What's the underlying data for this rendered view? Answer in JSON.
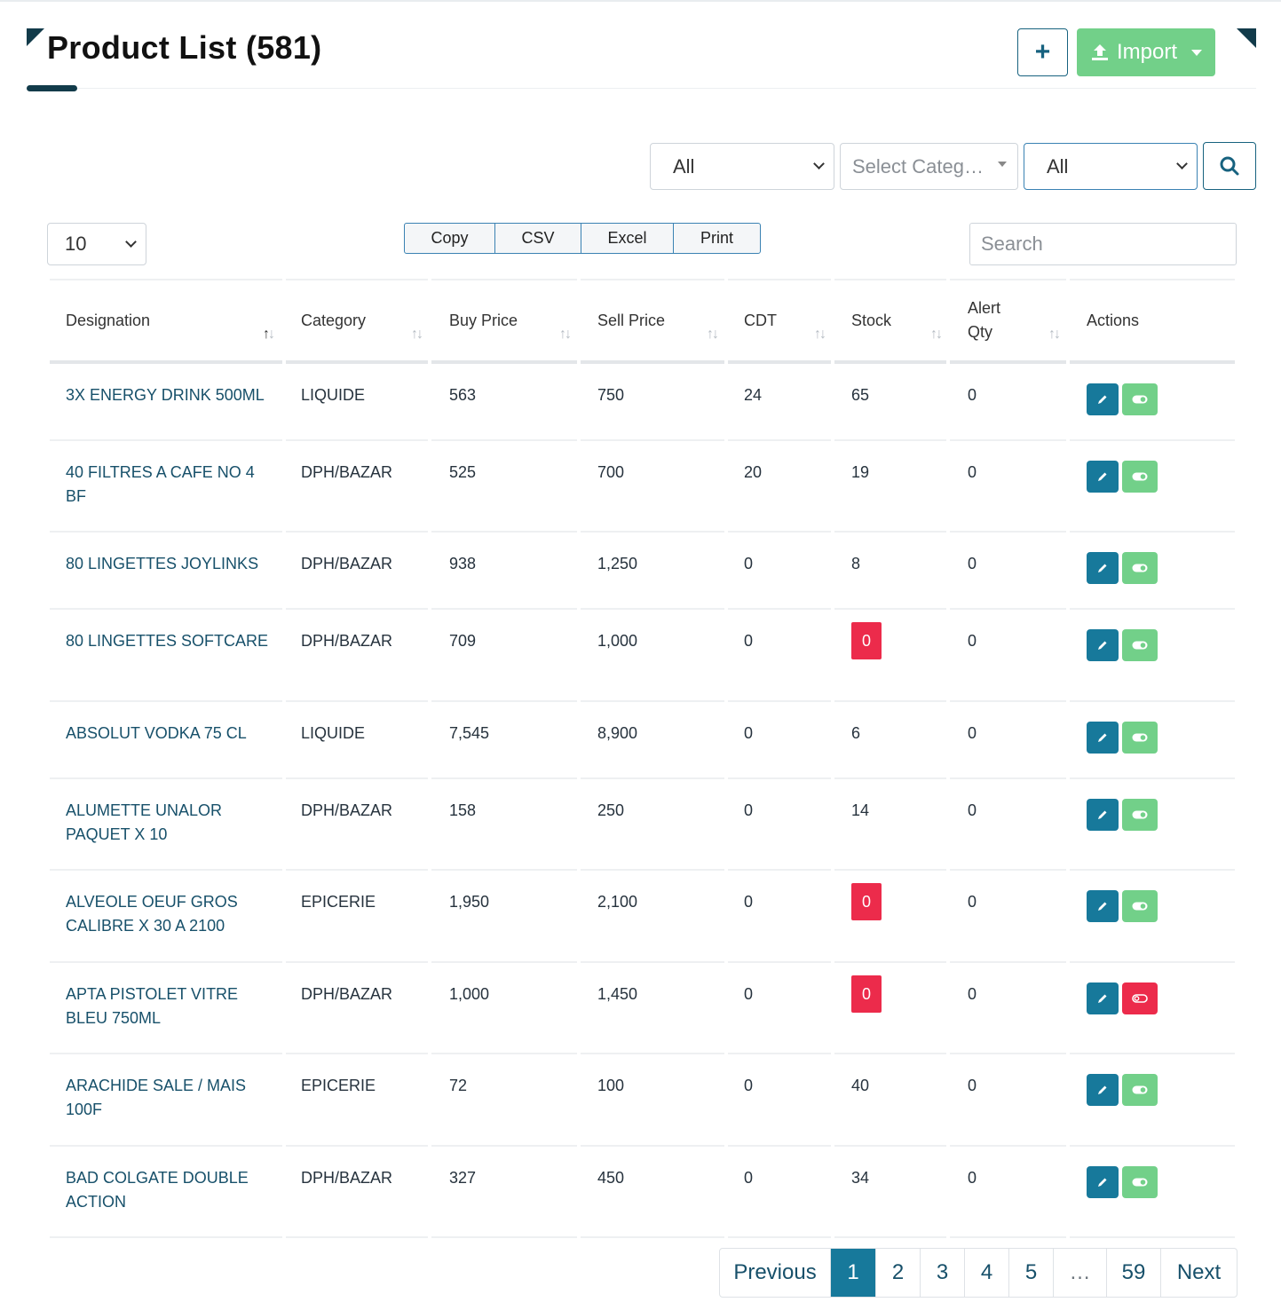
{
  "header": {
    "title": "Product List (581)",
    "import_label": "Import"
  },
  "filters": {
    "status_value": "All",
    "category_placeholder": "Select Categ…",
    "type_value": "All"
  },
  "controls": {
    "page_length": "10",
    "export_buttons": [
      "Copy",
      "CSV",
      "Excel",
      "Print"
    ],
    "search_placeholder": "Search"
  },
  "table": {
    "columns": [
      "Designation",
      "Category",
      "Buy Price",
      "Sell Price",
      "CDT",
      "Stock",
      "Alert\nQty",
      "Actions"
    ],
    "rows": [
      {
        "designation": "3X ENERGY DRINK 500ML",
        "category": "LIQUIDE",
        "buy": "563",
        "sell": "750",
        "cdt": "24",
        "stock": "65",
        "alert": "0",
        "active": true
      },
      {
        "designation": "40 FILTRES A CAFE NO 4 BF",
        "category": "DPH/BAZAR",
        "buy": "525",
        "sell": "700",
        "cdt": "20",
        "stock": "19",
        "alert": "0",
        "active": true
      },
      {
        "designation": "80 LINGETTES JOYLINKS",
        "category": "DPH/BAZAR",
        "buy": "938",
        "sell": "1,250",
        "cdt": "0",
        "stock": "8",
        "alert": "0",
        "active": true
      },
      {
        "designation": "80 LINGETTES SOFTCARE",
        "category": "DPH/BAZAR",
        "buy": "709",
        "sell": "1,000",
        "cdt": "0",
        "stock": "0",
        "alert": "0",
        "active": true
      },
      {
        "designation": "ABSOLUT VODKA 75 CL",
        "category": "LIQUIDE",
        "buy": "7,545",
        "sell": "8,900",
        "cdt": "0",
        "stock": "6",
        "alert": "0",
        "active": true
      },
      {
        "designation": "ALUMETTE UNALOR PAQUET X 10",
        "category": "DPH/BAZAR",
        "buy": "158",
        "sell": "250",
        "cdt": "0",
        "stock": "14",
        "alert": "0",
        "active": true
      },
      {
        "designation": "ALVEOLE OEUF GROS CALIBRE X 30 A 2100",
        "category": "EPICERIE",
        "buy": "1,950",
        "sell": "2,100",
        "cdt": "0",
        "stock": "0",
        "alert": "0",
        "active": true
      },
      {
        "designation": "APTA PISTOLET VITRE BLEU 750ML",
        "category": "DPH/BAZAR",
        "buy": "1,000",
        "sell": "1,450",
        "cdt": "0",
        "stock": "0",
        "alert": "0",
        "active": false
      },
      {
        "designation": "ARACHIDE SALE / MAIS 100F",
        "category": "EPICERIE",
        "buy": "72",
        "sell": "100",
        "cdt": "0",
        "stock": "40",
        "alert": "0",
        "active": true
      },
      {
        "designation": "BAD COLGATE DOUBLE ACTION",
        "category": "DPH/BAZAR",
        "buy": "327",
        "sell": "450",
        "cdt": "0",
        "stock": "34",
        "alert": "0",
        "active": true
      }
    ]
  },
  "pagination": {
    "items": [
      "Previous",
      "1",
      "2",
      "3",
      "4",
      "5",
      "…",
      "59",
      "Next"
    ],
    "current": "1"
  },
  "colors": {
    "primary": "#17799b",
    "success": "#72d089",
    "danger": "#ec2b4b",
    "dark": "#123b4a"
  },
  "icons": [
    "plus-icon",
    "upload-icon",
    "search-icon",
    "pencil-icon",
    "toggle-on-icon",
    "toggle-off-icon",
    "sort-icon",
    "chevron-down-icon"
  ]
}
